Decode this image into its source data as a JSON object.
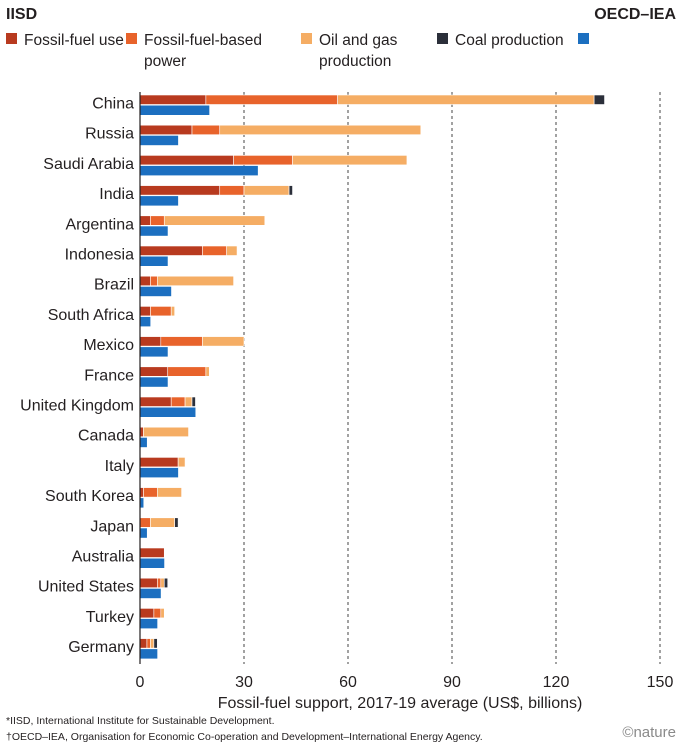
{
  "legend": {
    "source_left": "IISD",
    "source_right": "OECD–IEA",
    "items": [
      {
        "label": "Fossil-fuel use",
        "color": "#b83a1f"
      },
      {
        "label": "Fossil-fuel-based power",
        "color": "#e8632b"
      },
      {
        "label": "Oil and gas production",
        "color": "#f5ad64"
      },
      {
        "label": "Coal production",
        "color": "#2b2f3a"
      }
    ],
    "oecd_color": "#1c6fc0"
  },
  "chart_data": {
    "type": "bar",
    "orientation": "horizontal",
    "stacked": true,
    "title": "",
    "xlabel": "Fossil-fuel support, 2017-19 average (US$, billions)",
    "ylabel": "",
    "xlim": [
      0,
      150
    ],
    "xticks": [
      0,
      30,
      60,
      90,
      120,
      150
    ],
    "grid": "vertical dashed",
    "categories": [
      "China",
      "Russia",
      "Saudi Arabia",
      "India",
      "Argentina",
      "Indonesia",
      "Brazil",
      "South Africa",
      "Mexico",
      "France",
      "United Kingdom",
      "Canada",
      "Italy",
      "South Korea",
      "Japan",
      "Australia",
      "United States",
      "Turkey",
      "Germany"
    ],
    "iisd_series": [
      {
        "name": "Fossil-fuel use",
        "color": "#b83a1f",
        "values": [
          19,
          15,
          27,
          23,
          3,
          18,
          3,
          3,
          6,
          8,
          9,
          1,
          11,
          1,
          0,
          7,
          5,
          4,
          2
        ]
      },
      {
        "name": "Fossil-fuel-based power",
        "color": "#e8632b",
        "values": [
          38,
          8,
          17,
          7,
          4,
          7,
          2,
          6,
          12,
          11,
          4,
          0,
          0,
          4,
          3,
          0,
          1,
          2,
          1
        ]
      },
      {
        "name": "Oil and gas production",
        "color": "#f5ad64",
        "values": [
          74,
          58,
          33,
          13,
          29,
          3,
          22,
          1,
          12,
          1,
          2,
          13,
          2,
          7,
          7,
          0,
          1,
          1,
          1
        ]
      },
      {
        "name": "Coal production",
        "color": "#2b2f3a",
        "values": [
          3,
          0,
          0,
          1,
          0,
          0,
          0,
          0,
          0,
          0,
          1,
          0,
          0,
          0,
          1,
          0,
          1,
          0,
          1
        ]
      }
    ],
    "oecd_series": {
      "name": "OECD–IEA",
      "color": "#1c6fc0",
      "values": [
        20,
        11,
        34,
        11,
        8,
        8,
        9,
        3,
        8,
        8,
        16,
        2,
        11,
        1,
        2,
        7,
        6,
        5,
        5
      ]
    }
  },
  "footnotes": [
    "*IISD, International Institute for Sustainable Development.",
    "†OECD–IEA, Organisation for Economic Co-operation and Development–International Energy Agency."
  ],
  "brand": "©nature"
}
